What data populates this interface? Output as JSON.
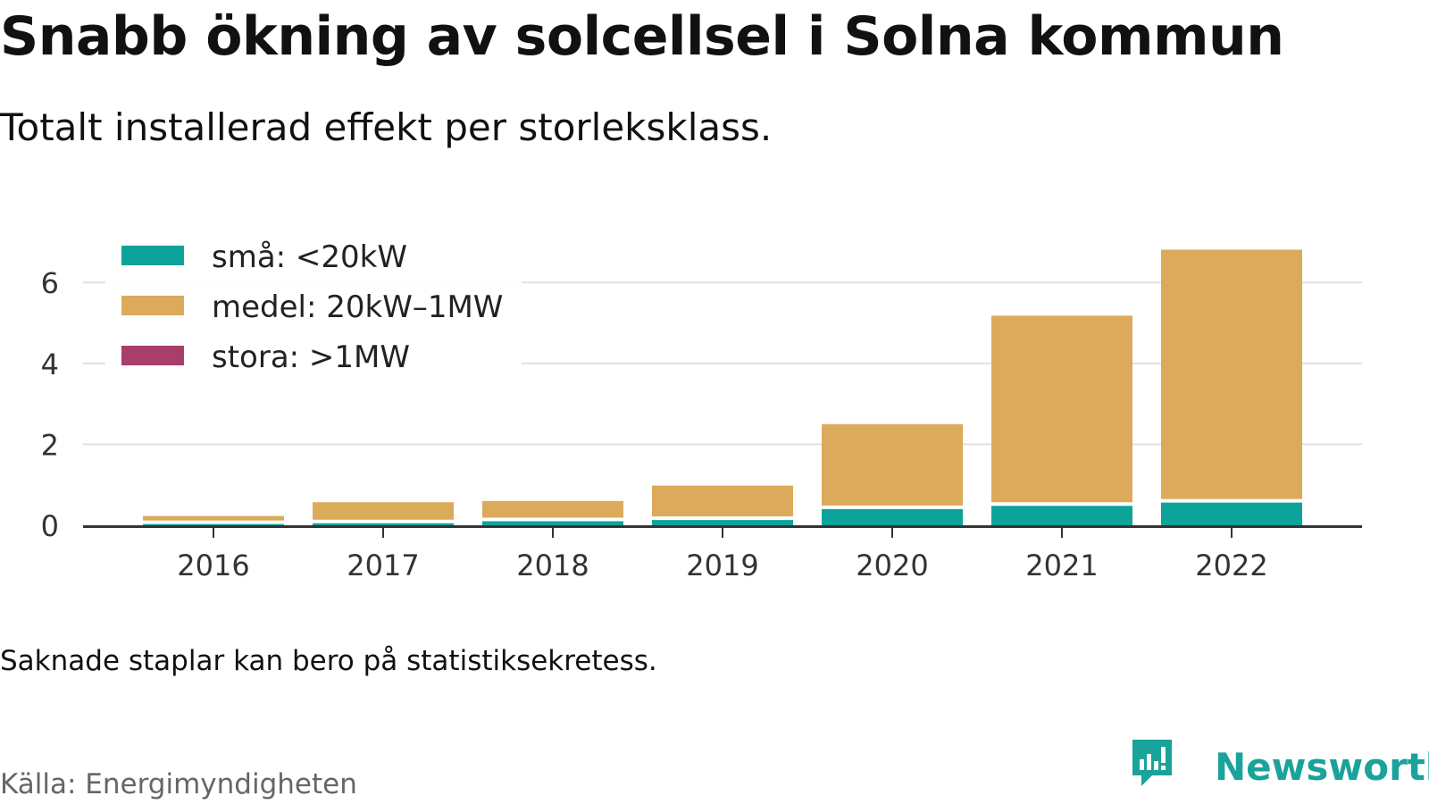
{
  "title": "Snabb ökning av solcellsel i Solna kommun",
  "subtitle": "Totalt installerad effekt per storleksklass.",
  "note": "Saknade staplar kan bero på statistiksekretess.",
  "source": "Källa: Energimyndigheten",
  "brand": {
    "name": "Newsworthy",
    "color": "#19a39a"
  },
  "chart_data": {
    "type": "bar",
    "stacked": true,
    "categories": [
      "2016",
      "2017",
      "2018",
      "2019",
      "2020",
      "2021",
      "2022"
    ],
    "series": [
      {
        "name": "små: <20kW",
        "color": "#0ea39a",
        "values": [
          0.03,
          0.05,
          0.1,
          0.13,
          0.4,
          0.48,
          0.56
        ]
      },
      {
        "name": "medel: 20kW–1MW",
        "color": "#dbab5b",
        "values": [
          0.2,
          0.52,
          0.5,
          0.85,
          2.1,
          4.7,
          6.25
        ]
      },
      {
        "name": "stora: >1MW",
        "color": "#a83e6b",
        "values": [
          0,
          0,
          0,
          0,
          0,
          0,
          0
        ]
      }
    ],
    "ylim": [
      0,
      7
    ],
    "yticks": [
      "0",
      "2",
      "4",
      "6"
    ],
    "ytick_values": [
      0,
      2,
      4,
      6
    ],
    "grid": true,
    "legend_position": "top-left",
    "xlabel": "",
    "ylabel": ""
  }
}
